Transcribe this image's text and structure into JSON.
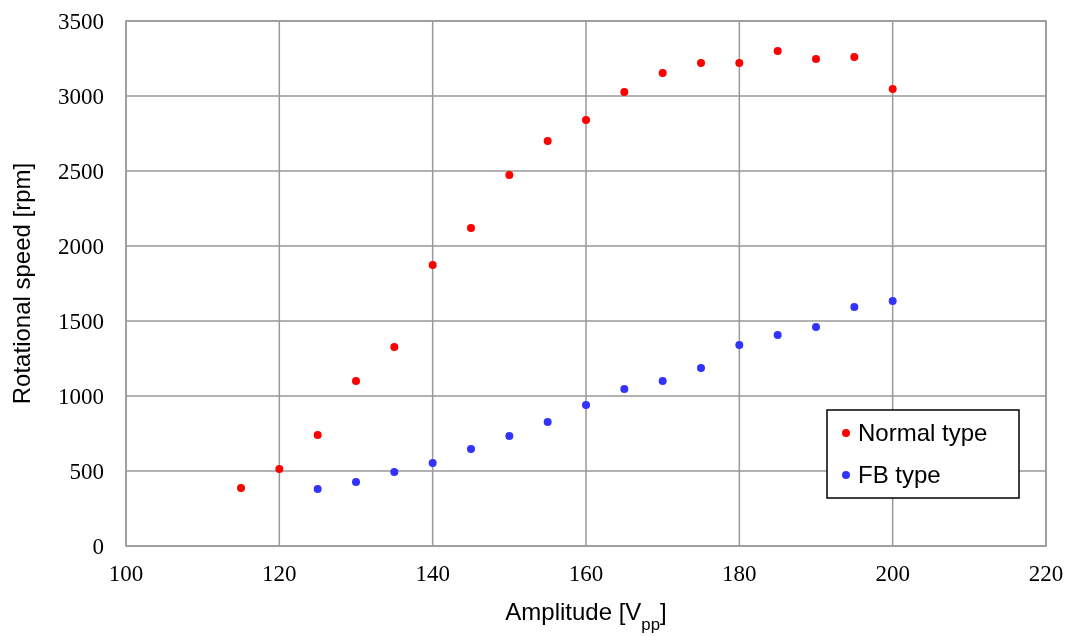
{
  "chart_data": {
    "type": "scatter",
    "xlabel": "Amplitude [V$_{pp}$]",
    "ylabel": "Rotational speed [rpm]",
    "xlim": [
      100,
      220
    ],
    "xticks": [
      100,
      120,
      140,
      160,
      180,
      200,
      220
    ],
    "ylim": [
      0,
      3500
    ],
    "yticks": [
      0,
      500,
      1000,
      1500,
      2000,
      2500,
      3000,
      3500
    ],
    "grid": true,
    "legend": "bottom right",
    "marker": "circle",
    "series": [
      {
        "name": "Normal type",
        "color": "#ff0000",
        "x": [
          115,
          120,
          125,
          130,
          135,
          140,
          145,
          150,
          155,
          160,
          165,
          170,
          175,
          180,
          185,
          190,
          195,
          200
        ],
        "values": [
          387,
          513,
          740,
          1100,
          1327,
          1873,
          2120,
          2473,
          2700,
          2840,
          3027,
          3153,
          3220,
          3220,
          3300,
          3247,
          3260,
          3047
        ]
      },
      {
        "name": "FB type",
        "color": "#3333ff",
        "x": [
          125,
          130,
          135,
          140,
          145,
          150,
          155,
          160,
          165,
          170,
          175,
          180,
          185,
          190,
          195,
          200
        ],
        "values": [
          380,
          427,
          493,
          553,
          647,
          733,
          827,
          940,
          1047,
          1100,
          1187,
          1340,
          1407,
          1460,
          1593,
          1633
        ]
      }
    ]
  }
}
